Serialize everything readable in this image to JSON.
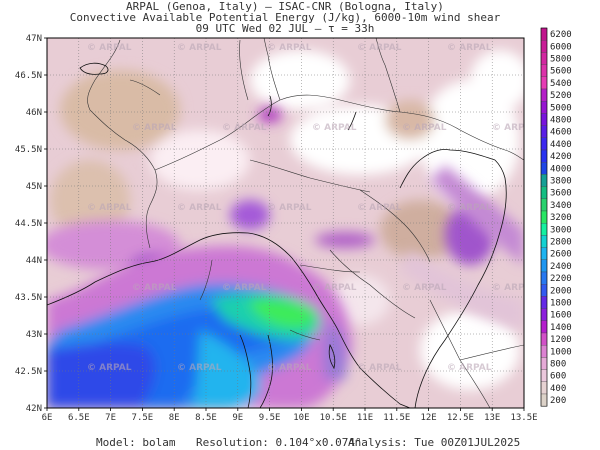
{
  "header": {
    "line1": "ARPAL (Genoa, Italy)  –  ISAC-CNR (Bologna, Italy)",
    "line2": "Convective Available Potential Energy (J/kg), 6000-10m wind shear",
    "line3": "09 UTC Wed 02 JUL  –  τ = 33h"
  },
  "footer": {
    "model": "Model: bolam",
    "resolution": "Resolution: 0.104°x0.074°",
    "analysis": "Analysis: Tue 00Z01JUL2025"
  },
  "watermark": "ARPAL",
  "map": {
    "lat_labels": [
      "47N",
      "46.5N",
      "46N",
      "45.5N",
      "45N",
      "44.5N",
      "44N",
      "43.5N",
      "43N",
      "42.5N",
      "42N"
    ],
    "lon_labels": [
      "6E",
      "6.5E",
      "7E",
      "7.5E",
      "8E",
      "8.5E",
      "9E",
      "9.5E",
      "10E",
      "10.5E",
      "11E",
      "11.5E",
      "12E",
      "12.5E",
      "13E",
      "13.5E"
    ]
  },
  "colorbar": {
    "levels": [
      6200,
      6000,
      5800,
      5600,
      5400,
      5200,
      5000,
      4800,
      4600,
      4400,
      4200,
      4000,
      3800,
      3600,
      3400,
      3200,
      3000,
      2800,
      2600,
      2400,
      2200,
      2000,
      1800,
      1600,
      1400,
      1200,
      1000,
      800,
      600,
      400,
      200
    ],
    "colors": [
      "#c0148c",
      "#c81e96",
      "#d228a0",
      "#dc32aa",
      "#e63cb4",
      "#b41ec8",
      "#9614d2",
      "#7814dc",
      "#5a1ee6",
      "#3c28f0",
      "#2832f0",
      "#1e46e6",
      "#14a096",
      "#14be82",
      "#28d26e",
      "#28e664",
      "#14f0a0",
      "#14d2d2",
      "#1eb4f0",
      "#1e96f0",
      "#2878f0",
      "#325af0",
      "#6428e6",
      "#8c1edc",
      "#b41ecd",
      "#d250c8",
      "#dc82d2",
      "#e6aad7",
      "#ebc8dc",
      "#e6d2d2",
      "#dcd2c8"
    ]
  },
  "colors": {
    "land_base": "#e8cdd5",
    "sea": "#cc78d4",
    "coast": "#111111"
  }
}
